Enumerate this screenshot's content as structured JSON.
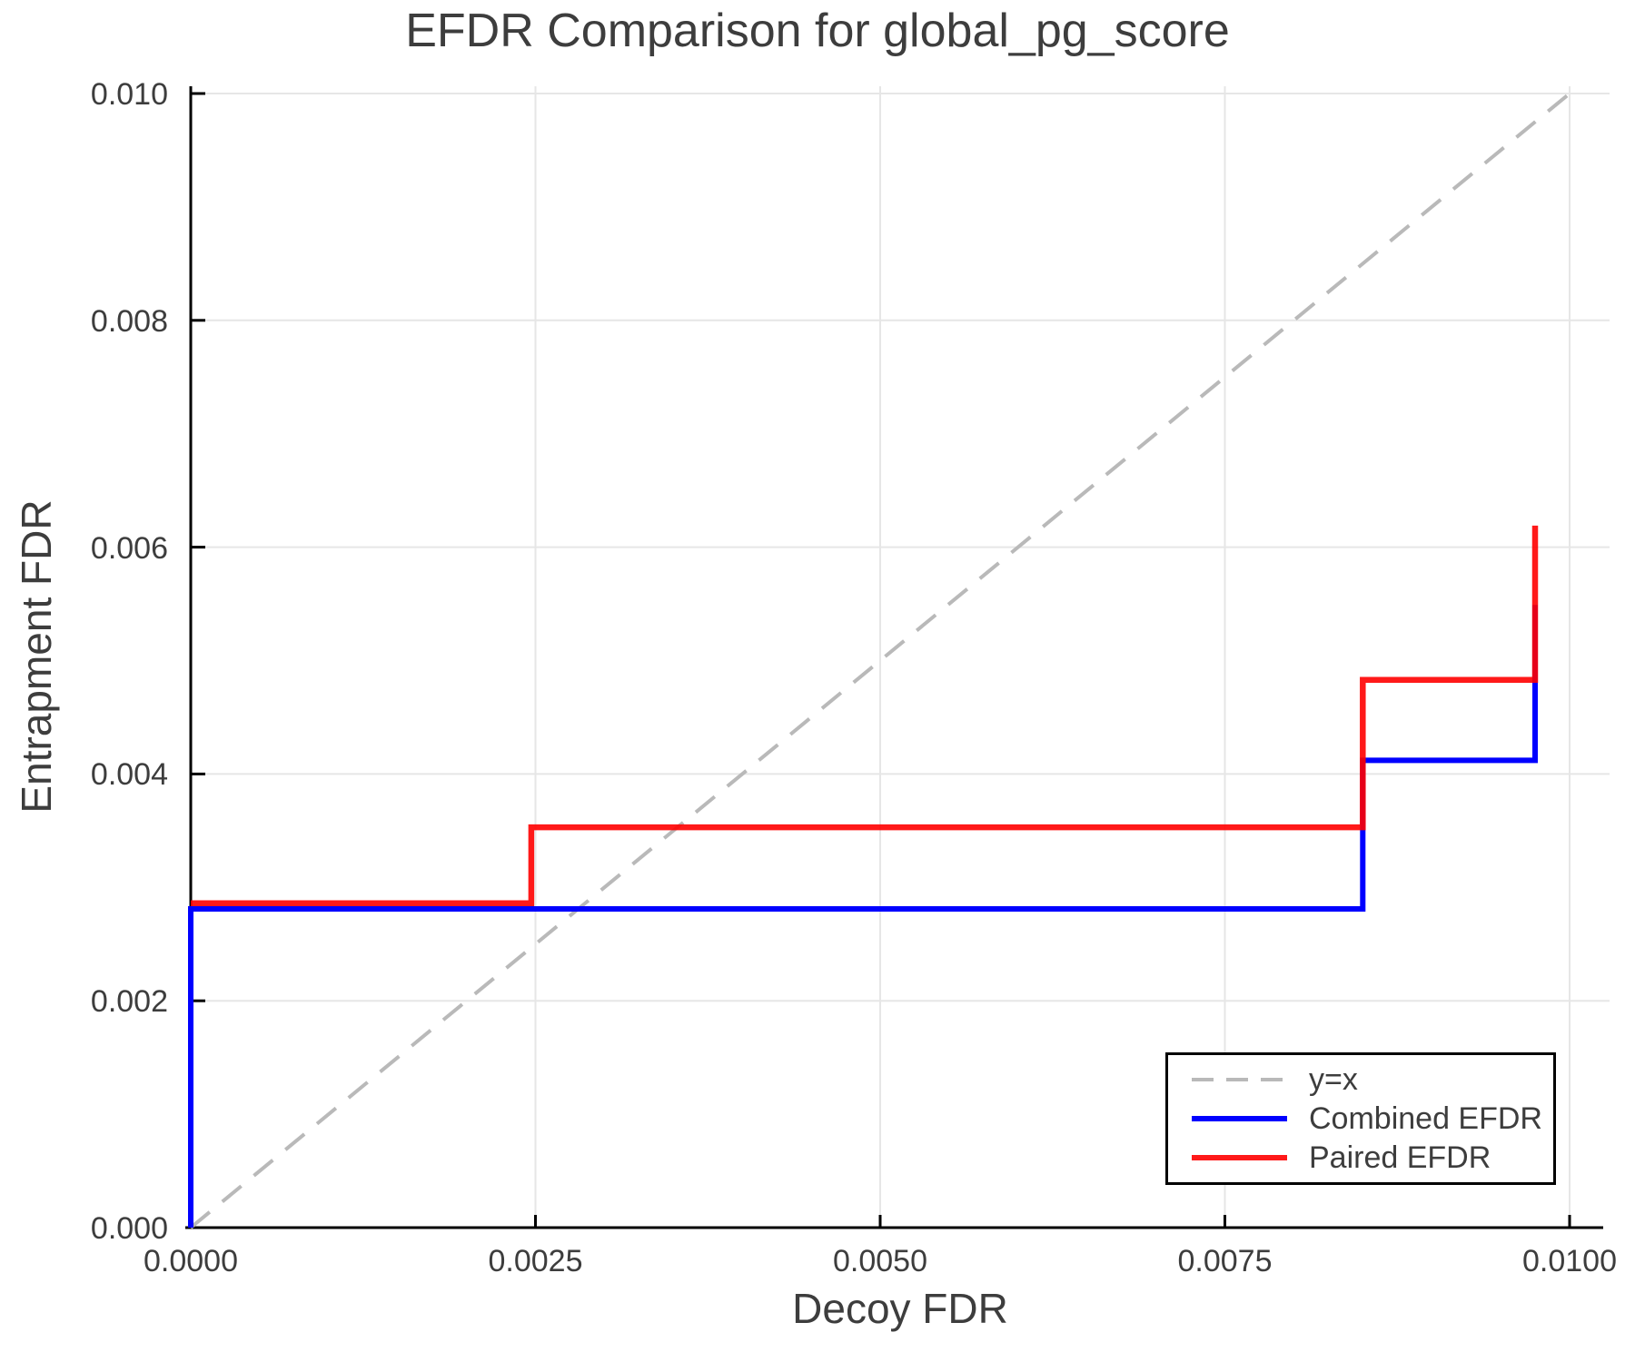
{
  "chart_data": {
    "type": "line",
    "title": "EFDR Comparison for global_pg_score",
    "xlabel": "Decoy FDR",
    "ylabel": "Entrapment FDR",
    "xlim": [
      0,
      0.01
    ],
    "ylim": [
      0,
      0.01
    ],
    "x_ticks": [
      0,
      0.0025,
      0.005,
      0.0075,
      0.01
    ],
    "x_tick_labels": [
      "0.0000",
      "0.0025",
      "0.0050",
      "0.0075",
      "0.0100"
    ],
    "y_ticks": [
      0,
      0.002,
      0.004,
      0.006,
      0.008,
      0.01
    ],
    "y_tick_labels": [
      "0.000",
      "0.002",
      "0.004",
      "0.006",
      "0.008",
      "0.010"
    ],
    "grid": true,
    "legend_position": "lower right",
    "series": [
      {
        "name": "y=x",
        "style": "dashed",
        "color": "#b9b9b9",
        "width": 4,
        "opacity": 1,
        "points": [
          [
            0,
            0
          ],
          [
            0.01,
            0.01
          ]
        ]
      },
      {
        "name": "Combined EFDR",
        "style": "solid",
        "color": "#0000ff",
        "width": 6,
        "opacity": 1,
        "points": [
          [
            0,
            0
          ],
          [
            0,
            0.00281
          ],
          [
            0.0085,
            0.00281
          ],
          [
            0.0085,
            0.00412
          ],
          [
            0.00975,
            0.00412
          ],
          [
            0.00975,
            0.00549
          ]
        ]
      },
      {
        "name": "Paired EFDR",
        "style": "solid",
        "color": "#ff0000",
        "width": 6.5,
        "opacity": 0.9,
        "points": [
          [
            0,
            0.00286
          ],
          [
            0.00247,
            0.00286
          ],
          [
            0.00247,
            0.00353
          ],
          [
            0.0085,
            0.00353
          ],
          [
            0.0085,
            0.00483
          ],
          [
            0.00975,
            0.00483
          ],
          [
            0.00975,
            0.00619
          ]
        ]
      }
    ],
    "colors": {
      "grid": "#e6e6e6",
      "spine": "#000000",
      "text": "#3d3d3d",
      "background": "#ffffff"
    }
  }
}
